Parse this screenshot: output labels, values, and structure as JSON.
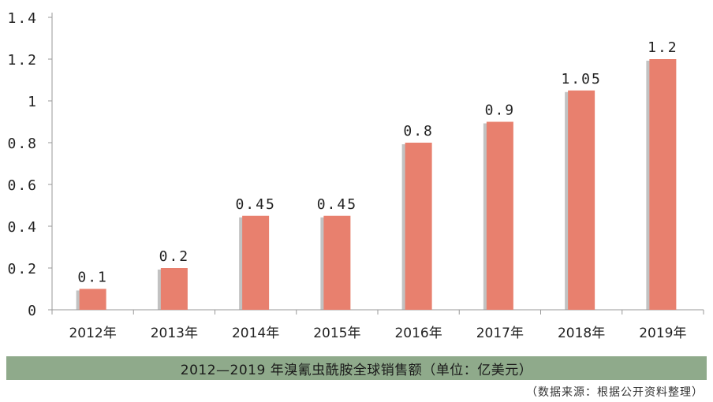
{
  "chart_data": {
    "type": "bar",
    "categories": [
      "2012年",
      "2013年",
      "2014年",
      "2015年",
      "2016年",
      "2017年",
      "2018年",
      "2019年"
    ],
    "values": [
      0.1,
      0.2,
      0.45,
      0.45,
      0.8,
      0.9,
      1.05,
      1.2
    ],
    "data_labels": [
      "0.1",
      "0.2",
      "0.45",
      "0.45",
      "0.8",
      "0.9",
      "1.05",
      "1.2"
    ],
    "ylim": [
      0,
      1.4
    ],
    "yticks": [
      0,
      0.2,
      0.4,
      0.6,
      0.8,
      1,
      1.2,
      1.4
    ],
    "ytick_labels": [
      "0",
      "0.2",
      "0.4",
      "0.6",
      "0.8",
      "1",
      "1.2",
      "1.4"
    ],
    "bar_color": "#e8806e",
    "shadow_color": "#9a9a9a",
    "grid": false,
    "title": ""
  },
  "caption": "2012—2019 年溴氰虫酰胺全球销售额（单位：亿美元）",
  "source": "（数据来源：根据公开资料整理）",
  "colors": {
    "caption_bg": "#8faa8b",
    "axis": "#999999"
  }
}
